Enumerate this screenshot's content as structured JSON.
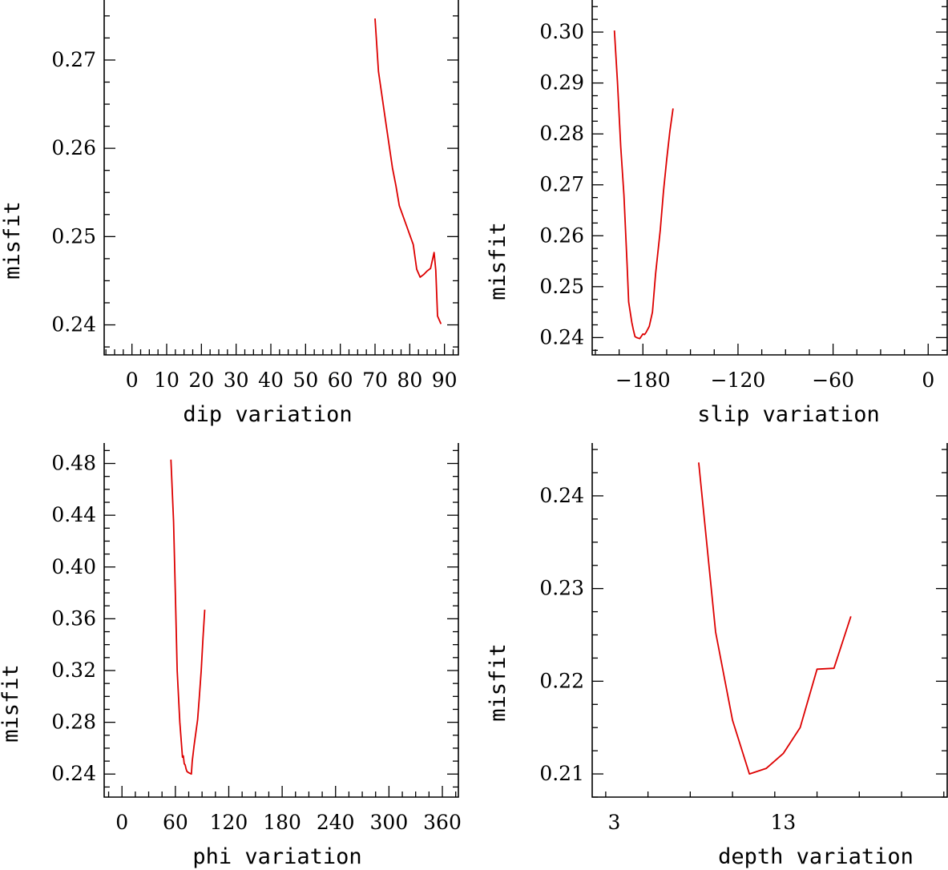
{
  "line_color": "#dd0000",
  "chart_data": [
    {
      "type": "line",
      "xlabel": "dip    variation",
      "ylabel": "misfit",
      "xlim": [
        -8,
        94
      ],
      "ylim": [
        0.2366,
        0.2768
      ],
      "xticks": [
        0,
        10,
        20,
        30,
        40,
        50,
        60,
        70,
        80,
        90
      ],
      "xtick_labels": [
        "0",
        "10",
        "20",
        "30",
        "40",
        "50",
        "60",
        "70",
        "80",
        "90"
      ],
      "yticks": [
        0.24,
        0.25,
        0.26,
        0.27
      ],
      "ytick_labels": [
        "0.24",
        "0.25",
        "0.26",
        "0.27"
      ],
      "series": [
        {
          "name": "misfit",
          "x": [
            70,
            71,
            73,
            75,
            76,
            77,
            79,
            81,
            82,
            83,
            84,
            85,
            86,
            87,
            87.5,
            88,
            89
          ],
          "y": [
            0.2747,
            0.2687,
            0.2632,
            0.2578,
            0.2558,
            0.2535,
            0.2513,
            0.2491,
            0.2463,
            0.2454,
            0.2457,
            0.2461,
            0.2464,
            0.2482,
            0.2462,
            0.241,
            0.2401
          ]
        }
      ]
    },
    {
      "type": "line",
      "xlabel": "slip   variation",
      "ylabel": "misfit",
      "xlim": [
        -212,
        12
      ],
      "ylim": [
        0.2366,
        0.3063
      ],
      "xticks": [
        -180,
        -120,
        -60,
        0
      ],
      "xtick_labels": [
        "−180",
        "−120",
        "−60",
        "0"
      ],
      "yticks": [
        0.24,
        0.25,
        0.26,
        0.27,
        0.28,
        0.29,
        0.3
      ],
      "ytick_labels": [
        "0.24",
        "0.25",
        "0.26",
        "0.27",
        "0.28",
        "0.29",
        "0.30"
      ],
      "series": [
        {
          "name": "misfit",
          "x": [
            -198,
            -196,
            -194,
            -192,
            -190,
            -189,
            -187,
            -186,
            -185,
            -184,
            -182,
            -180,
            -179,
            -178,
            -176,
            -174,
            -172,
            -169,
            -167,
            -165,
            -163,
            -161
          ],
          "y": [
            0.3003,
            0.29,
            0.2775,
            0.268,
            0.2545,
            0.247,
            0.243,
            0.2415,
            0.2402,
            0.24,
            0.2398,
            0.2407,
            0.2406,
            0.241,
            0.2422,
            0.245,
            0.2525,
            0.2612,
            0.2688,
            0.275,
            0.2805,
            0.285
          ]
        }
      ]
    },
    {
      "type": "line",
      "xlabel": "phi    variation",
      "ylabel": "misfit",
      "xlim": [
        -20,
        378
      ],
      "ylim": [
        0.2222,
        0.4958
      ],
      "xticks": [
        0,
        60,
        120,
        180,
        240,
        300,
        360
      ],
      "xtick_labels": [
        "0",
        "60",
        "120",
        "180",
        "240",
        "300",
        "360"
      ],
      "yticks": [
        0.24,
        0.28,
        0.32,
        0.36,
        0.4,
        0.44,
        0.48
      ],
      "ytick_labels": [
        "0.24",
        "0.28",
        "0.32",
        "0.36",
        "0.40",
        "0.44",
        "0.48"
      ],
      "series": [
        {
          "name": "misfit",
          "x": [
            55,
            58,
            60,
            62,
            65,
            68,
            69,
            70,
            71,
            72,
            73,
            75,
            78,
            79,
            81,
            83,
            85,
            87,
            89,
            91,
            93
          ],
          "y": [
            0.483,
            0.435,
            0.38,
            0.32,
            0.28,
            0.253,
            0.254,
            0.248,
            0.247,
            0.244,
            0.242,
            0.241,
            0.24,
            0.25,
            0.262,
            0.272,
            0.282,
            0.3,
            0.32,
            0.345,
            0.367
          ]
        }
      ]
    },
    {
      "type": "line",
      "xlabel": "depth  variation",
      "ylabel": "misfit",
      "xlim": [
        1.7,
        22.7
      ],
      "ylim": [
        0.2075,
        0.2457
      ],
      "xticks": [
        3,
        13
      ],
      "xtick_labels": [
        "3",
        "13"
      ],
      "yticks": [
        0.21,
        0.22,
        0.23,
        0.24
      ],
      "ytick_labels": [
        "0.21",
        "0.22",
        "0.23",
        "0.24"
      ],
      "series": [
        {
          "name": "misfit",
          "x": [
            8,
            9,
            10,
            11,
            12,
            13,
            14,
            15,
            16,
            17
          ],
          "y": [
            0.2436,
            0.2253,
            0.2158,
            0.21,
            0.2106,
            0.2122,
            0.215,
            0.2213,
            0.2214,
            0.227
          ]
        }
      ]
    }
  ]
}
